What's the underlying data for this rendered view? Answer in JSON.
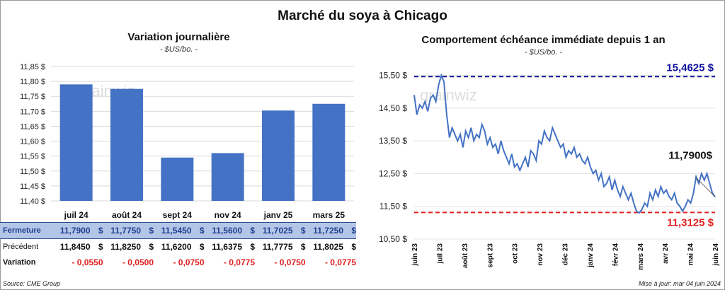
{
  "title": "Marché du soya à Chicago",
  "left": {
    "title": "Variation  journalière",
    "unit": "- $US/bo. -",
    "chart_data": {
      "type": "bar",
      "categories": [
        "juil 24",
        "août 24",
        "sept 24",
        "nov 24",
        "janv 25",
        "mars 25"
      ],
      "values": [
        11.79,
        11.775,
        11.545,
        11.56,
        11.7025,
        11.725
      ],
      "ylim": [
        11.4,
        11.85
      ],
      "yticks": [
        "11,40 $",
        "11,45 $",
        "11,50 $",
        "11,55 $",
        "11,60 $",
        "11,65 $",
        "11,70 $",
        "11,75 $",
        "11,80 $",
        "11,85 $"
      ],
      "grid": true,
      "color": "#4472c4"
    },
    "table": {
      "fermeture_label": "Fermeture",
      "precedent_label": "Précédent",
      "variation_label": "Variation",
      "fermeture": [
        "11,7900",
        "11,7750",
        "11,5450",
        "11,5600",
        "11,7025",
        "11,7250"
      ],
      "precedent": [
        "11,8450",
        "11,8250",
        "11,6200",
        "11,6375",
        "11,7775",
        "11,8025"
      ],
      "variation": [
        "- 0,0550",
        "- 0,0500",
        "- 0,0750",
        "- 0,0775",
        "- 0,0750",
        "- 0,0775"
      ],
      "currency": "$"
    }
  },
  "right": {
    "title": "Comportement  échéance immédiate depuis 1 an",
    "unit": "- $US/bo. -",
    "chart_data": {
      "type": "line",
      "ylim": [
        10.5,
        15.9
      ],
      "yticks": [
        "10,50 $",
        "11,50 $",
        "12,50 $",
        "13,50 $",
        "14,50 $",
        "15,50 $"
      ],
      "xticks": [
        "juin 23",
        "juil 23",
        "août 23",
        "sept 23",
        "oct 23",
        "nov 23",
        "déc 23",
        "janv 24",
        "févr 24",
        "mars 24",
        "avr 24",
        "mai 24",
        "juin 24"
      ],
      "high": 15.4625,
      "high_label": "15,4625 $",
      "low": 11.3125,
      "low_label": "11,3125 $",
      "last_label": "11,7900$",
      "high_color": "#1010a0",
      "low_color": "#e02020",
      "line_color": "#4472c4",
      "series": [
        14.9,
        14.3,
        14.6,
        14.5,
        14.7,
        14.4,
        14.8,
        14.9,
        14.7,
        15.2,
        15.5,
        15.3,
        14.3,
        13.6,
        13.9,
        13.7,
        13.5,
        13.7,
        13.3,
        13.8,
        13.6,
        13.9,
        13.5,
        13.7,
        13.6,
        14.0,
        13.8,
        13.4,
        13.6,
        13.3,
        13.4,
        13.1,
        13.5,
        13.2,
        13.0,
        12.8,
        13.1,
        12.7,
        12.8,
        12.6,
        12.8,
        13.0,
        12.7,
        13.2,
        13.1,
        12.9,
        13.5,
        13.4,
        13.8,
        13.6,
        13.5,
        13.9,
        13.7,
        13.5,
        13.3,
        13.4,
        13.0,
        13.2,
        13.1,
        13.3,
        13.0,
        13.1,
        12.9,
        12.8,
        13.0,
        12.7,
        12.5,
        12.6,
        12.3,
        12.5,
        12.1,
        12.2,
        12.4,
        12.0,
        12.3,
        12.0,
        11.8,
        12.1,
        11.9,
        11.7,
        11.9,
        11.6,
        11.35,
        11.3,
        11.4,
        11.6,
        11.5,
        11.9,
        11.7,
        12.0,
        11.8,
        12.1,
        11.9,
        12.0,
        11.8,
        11.7,
        11.9,
        11.6,
        11.5,
        11.35,
        11.5,
        11.7,
        11.6,
        11.9,
        12.4,
        12.2,
        12.5,
        12.3,
        12.5,
        12.2,
        11.9,
        11.79
      ]
    },
    "footer_update": "Mise à jour: mar 04 juin 2024"
  },
  "footer_source": "Source: CME Group",
  "watermark": "grainwiz"
}
